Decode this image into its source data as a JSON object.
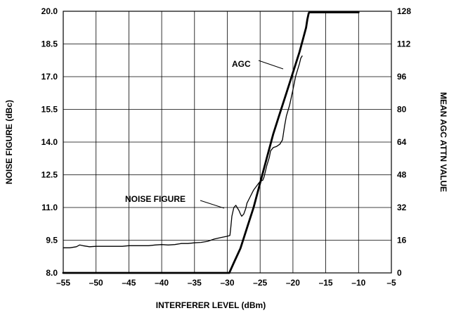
{
  "chart_data": {
    "type": "line",
    "xlabel": "INTERFERER LEVEL (dBm)",
    "ylabel": "NOISE FIGURE (dBc)",
    "y2label": "MEAN AGC ATTN VALUE",
    "xlim": [
      -55,
      -5
    ],
    "ylim": [
      8.0,
      20.0
    ],
    "y2lim": [
      0,
      128
    ],
    "grid": true,
    "x_ticks": [
      "–55",
      "–50",
      "–45",
      "–40",
      "–35",
      "–30",
      "–25",
      "–20",
      "–15",
      "–10",
      "–5"
    ],
    "y_ticks": [
      "8.0",
      "9.5",
      "11.0",
      "12.5",
      "14.0",
      "15.5",
      "17.0",
      "18.5",
      "20.0"
    ],
    "y2_ticks": [
      "0",
      "16",
      "32",
      "48",
      "64",
      "80",
      "96",
      "112",
      "128"
    ],
    "series": [
      {
        "name": "NOISE FIGURE",
        "axis": "left",
        "x": [
          -55,
          -54,
          -53,
          -52.5,
          -52,
          -51,
          -50,
          -48,
          -46,
          -45,
          -44,
          -42,
          -41,
          -40,
          -39,
          -38,
          -37,
          -36,
          -35,
          -34,
          -33,
          -32,
          -31,
          -30,
          -29.6,
          -29.5,
          -29.3,
          -29,
          -28.7,
          -28.5,
          -28.2,
          -28,
          -27.8,
          -27.5,
          -27.2,
          -27,
          -26.5,
          -26,
          -25.5,
          -25,
          -24.6,
          -24.4,
          -24,
          -23.6,
          -23.4,
          -23,
          -22.5,
          -22,
          -21.6,
          -21.3,
          -21,
          -20.5,
          -20,
          -19.6,
          -19.3,
          -19,
          -18.8,
          -18.6
        ],
        "y": [
          9.15,
          9.15,
          9.2,
          9.28,
          9.25,
          9.2,
          9.22,
          9.22,
          9.22,
          9.25,
          9.25,
          9.25,
          9.28,
          9.3,
          9.28,
          9.3,
          9.35,
          9.35,
          9.38,
          9.4,
          9.45,
          9.55,
          9.62,
          9.68,
          9.72,
          10.0,
          10.6,
          11.0,
          11.1,
          11.0,
          10.85,
          10.7,
          10.6,
          10.7,
          10.95,
          11.2,
          11.5,
          11.8,
          12.0,
          12.2,
          12.25,
          12.4,
          12.9,
          13.3,
          13.6,
          13.75,
          13.8,
          13.9,
          14.1,
          14.7,
          15.2,
          15.7,
          16.4,
          17.0,
          17.3,
          17.6,
          17.85,
          17.95
        ]
      },
      {
        "name": "AGC",
        "axis": "right",
        "x": [
          -55,
          -30,
          -29.7,
          -29,
          -28,
          -27,
          -26,
          -25,
          -24,
          -23,
          -22,
          -21,
          -20,
          -19,
          -18.5,
          -18,
          -17.8,
          -17.6,
          -17.5,
          -10
        ],
        "y": [
          0,
          0,
          0,
          5,
          12,
          22,
          32,
          44,
          56,
          68,
          78,
          88,
          98,
          108,
          114,
          120,
          124,
          127,
          127.5,
          127.5
        ]
      }
    ],
    "annotations": [
      {
        "text": "AGC",
        "points_to": "AGC"
      },
      {
        "text": "NOISE FIGURE",
        "points_to": "NOISE FIGURE"
      }
    ]
  }
}
